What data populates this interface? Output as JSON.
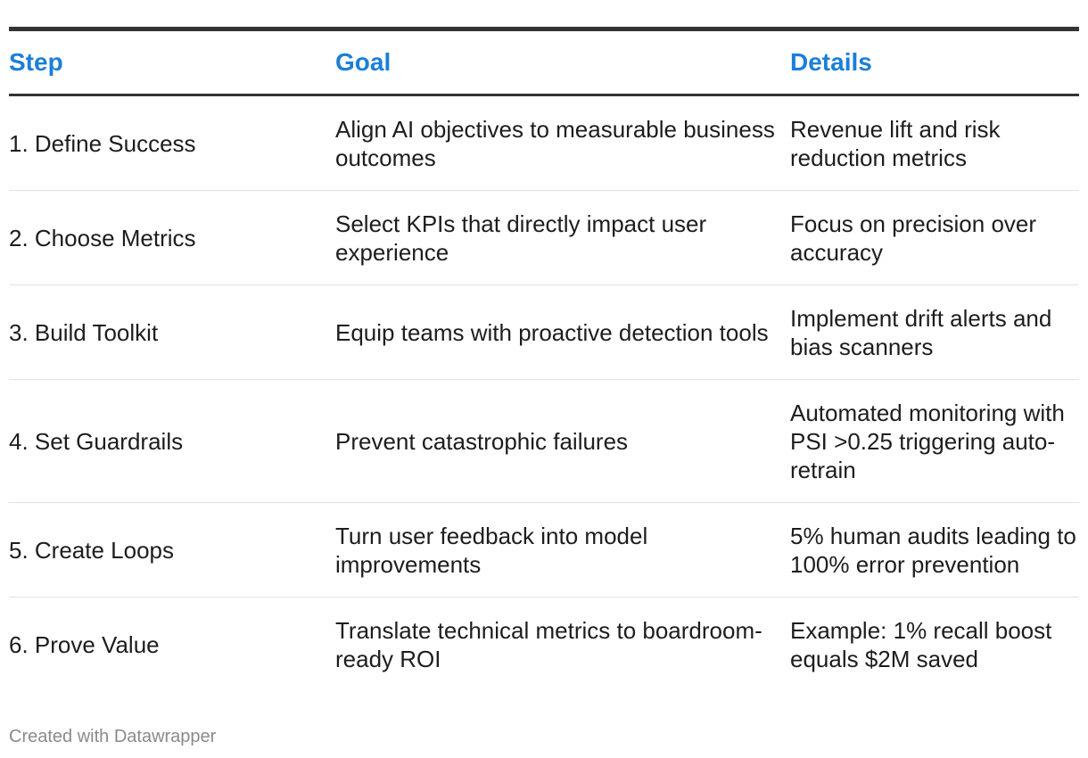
{
  "chart_data": {
    "type": "table",
    "columns": [
      "Step",
      "Goal",
      "Details"
    ],
    "rows": [
      [
        "1. Define Success",
        "Align AI objectives to measurable business outcomes",
        "Revenue lift and risk reduction metrics"
      ],
      [
        "2. Choose Metrics",
        "Select KPIs that directly impact user experience",
        "Focus on precision over accuracy"
      ],
      [
        "3. Build Toolkit",
        "Equip teams with proactive detection tools",
        "Implement drift alerts and bias scanners"
      ],
      [
        "4. Set Guardrails",
        "Prevent catastrophic failures",
        "Automated monitoring with PSI >0.25 triggering auto-retrain"
      ],
      [
        "5. Create Loops",
        "Turn user feedback into model improvements",
        "5% human audits leading to 100% error prevention"
      ],
      [
        "6. Prove Value",
        "Translate technical metrics to boardroom-ready ROI",
        "Example: 1% recall boost equals $2M saved"
      ]
    ]
  },
  "colors": {
    "header_text": "#1a7fd8",
    "rule": "#333333",
    "row_divider": "#e2e2e2",
    "footer_text": "#8a8a8a"
  },
  "footer": {
    "credit": "Created with Datawrapper"
  }
}
